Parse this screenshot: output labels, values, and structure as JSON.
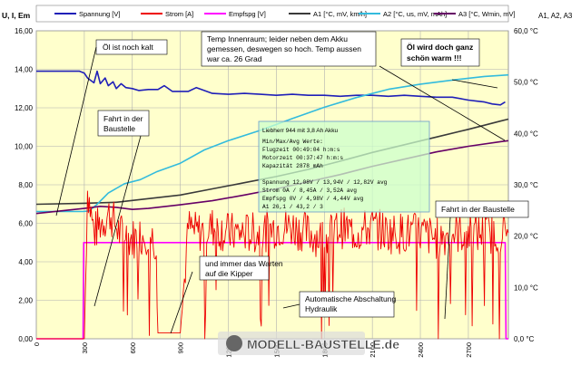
{
  "chart_data": {
    "type": "line",
    "left_axis_label": "U, I, Em",
    "right_axis_label": "A1, A2, A3",
    "x_ticks": [
      "0",
      "300",
      "600",
      "900",
      "1200",
      "1500",
      "1800",
      "2100",
      "2400",
      "2700"
    ],
    "y_left_ticks": [
      "0,00",
      "2,00",
      "4,00",
      "6,00",
      "8,00",
      "10,00",
      "12,00",
      "14,00",
      "16,00"
    ],
    "y_right_ticks": [
      "0,0 °C",
      "10,0 °C",
      "20,0 °C",
      "30,0 °C",
      "40,0 °C",
      "50,0 °C",
      "60,0 °C"
    ],
    "xlim": [
      0,
      2950
    ],
    "ylim_left": [
      0,
      16
    ],
    "ylim_right": [
      0,
      60
    ],
    "grid": true,
    "legend_position": "top",
    "series": [
      {
        "name": "Spannung [V]",
        "color": "#1f1fb8",
        "axis": "left",
        "x": [
          0,
          270,
          300,
          320,
          360,
          380,
          400,
          430,
          450,
          480,
          500,
          530,
          560,
          600,
          640,
          700,
          760,
          800,
          850,
          900,
          950,
          1000,
          1100,
          1200,
          1300,
          1400,
          1500,
          1600,
          1700,
          1800,
          1900,
          2000,
          2100,
          2200,
          2300,
          2400,
          2500,
          2600,
          2700,
          2750,
          2800,
          2850,
          2900,
          2930
        ],
        "y": [
          13.9,
          13.9,
          13.8,
          13.55,
          13.3,
          13.9,
          13.25,
          13.55,
          13.15,
          13.35,
          13.0,
          13.25,
          13.05,
          13.0,
          12.9,
          12.95,
          12.95,
          13.15,
          12.85,
          12.85,
          12.85,
          13.05,
          12.75,
          12.7,
          12.75,
          12.7,
          12.65,
          12.7,
          12.65,
          12.65,
          12.6,
          12.65,
          12.65,
          12.6,
          12.65,
          12.6,
          12.55,
          12.55,
          12.4,
          12.35,
          12.3,
          12.2,
          12.15,
          12.3
        ]
      },
      {
        "name": "Empfspg [V]",
        "color": "#ff00ff",
        "axis": "left",
        "x": [
          0,
          292,
          296,
          2930,
          2935,
          2950
        ],
        "y": [
          0,
          0,
          5.0,
          5.0,
          0,
          0
        ]
      },
      {
        "name": "A1 [°C, mV, km/h]",
        "color": "#3a3a3a",
        "axis": "right",
        "x": [
          0,
          300,
          500,
          700,
          900,
          1100,
          1300,
          1500,
          1700,
          1900,
          2100,
          2300,
          2500,
          2700,
          2900,
          2950
        ],
        "y": [
          26.2,
          26.4,
          26.6,
          27.3,
          28.0,
          29.2,
          30.4,
          31.6,
          33.0,
          34.6,
          36.3,
          37.8,
          39.3,
          40.8,
          42.4,
          42.8
        ]
      },
      {
        "name": "A2 [°C, us, mV, mAh]",
        "color": "#33bbdd",
        "axis": "right",
        "x": [
          0,
          290,
          330,
          380,
          450,
          550,
          650,
          750,
          900,
          1050,
          1200,
          1400,
          1600,
          1800,
          2000,
          2200,
          2400,
          2600,
          2800,
          2950
        ],
        "y": [
          24.8,
          24.8,
          24.9,
          26.2,
          28.4,
          30.2,
          31.0,
          32.5,
          34.2,
          36.8,
          38.6,
          40.6,
          42.9,
          45.1,
          47.0,
          48.6,
          49.6,
          50.4,
          51.1,
          51.4
        ]
      },
      {
        "name": "A3 [°C, Wmin, mV]",
        "color": "#660066",
        "axis": "right",
        "x": [
          0,
          300,
          400,
          500,
          600,
          700,
          900,
          1100,
          1300,
          1500,
          1700,
          1900,
          2100,
          2300,
          2500,
          2700,
          2900,
          2950
        ],
        "y": [
          24.4,
          25.4,
          25.8,
          25.6,
          25.2,
          25.4,
          26.1,
          26.9,
          28.0,
          29.2,
          30.6,
          32.0,
          33.6,
          35.0,
          36.4,
          37.5,
          38.4,
          38.6
        ]
      },
      {
        "name": "Strom [A]",
        "color": "#ee0000",
        "axis": "left",
        "x": [
          0,
          300,
          320,
          360,
          400,
          460,
          520,
          600,
          700,
          750,
          760,
          800,
          850,
          900,
          950,
          1000,
          1100,
          1200,
          1300,
          1400,
          1500,
          1600,
          1700,
          1800,
          1900,
          2000,
          2100,
          2200,
          2300,
          2400,
          2500,
          2600,
          2700,
          2800,
          2900,
          2950
        ],
        "y": [
          0,
          0,
          7.8,
          5.5,
          6.0,
          6.5,
          5.5,
          5.2,
          5.5,
          5.0,
          0.3,
          0.3,
          0.3,
          0.3,
          5.8,
          5.5,
          5.8,
          5.5,
          5.5,
          5.5,
          5.8,
          5.8,
          5.5,
          5.2,
          5.8,
          5.5,
          5.8,
          5.5,
          5.5,
          5.5,
          5.2,
          5.5,
          5.5,
          5.5,
          5.5,
          5.5
        ]
      }
    ],
    "annotations": [
      "Öl ist noch kalt",
      "Fahrt in der Baustelle",
      "Temp Innenraum; leider neben dem Akku gemessen, deswegen so hoch. Temp aussen war ca. 26 Grad",
      "Öl wird doch ganz schön warm !!!",
      "und immer das Warten auf die Kipper",
      "Automatische Abschaltung Hydraulik",
      "Fahrt in der Baustelle"
    ],
    "info_box": {
      "title": "Liebherr 944 mit 3,8 Ah Akku",
      "lines": [
        "Min/Max/Avg Werte:",
        "Flugzeit   00:49:04 h:m:s",
        "Motorzeit  00:37:47 h:m:s",
        "Kapazität  2878 mAh",
        "",
        "Spannung   12,08V / 13,94V / 12,82V avg",
        "Strom      0A / 8,45A / 3,52A avg",
        "Empfspg    0V / 4,98V / 4,44V avg",
        "A1         26,1 / 43,2 / 3"
      ]
    },
    "watermark": "MODELL-BAUSTELLE.de"
  }
}
